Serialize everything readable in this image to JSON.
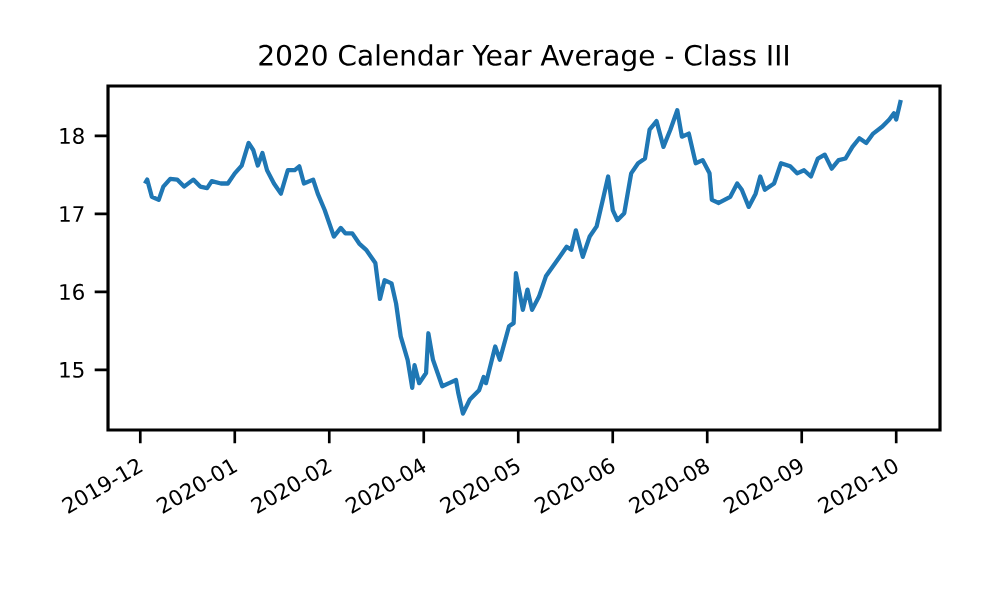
{
  "chart_data": {
    "type": "line",
    "title": "2020 Calendar Year Average - Class III",
    "x": [
      "2019-12-03",
      "2019-12-04",
      "2019-12-06",
      "2019-12-09",
      "2019-12-11",
      "2019-12-14",
      "2019-12-17",
      "2019-12-20",
      "2019-12-24",
      "2019-12-27",
      "2019-12-30",
      "2020-01-01",
      "2020-01-05",
      "2020-01-08",
      "2020-01-11",
      "2020-01-14",
      "2020-01-17",
      "2020-01-19",
      "2020-01-21",
      "2020-01-23",
      "2020-01-25",
      "2020-01-28",
      "2020-01-31",
      "2020-02-03",
      "2020-02-06",
      "2020-02-08",
      "2020-02-10",
      "2020-02-14",
      "2020-02-16",
      "2020-02-19",
      "2020-02-23",
      "2020-02-26",
      "2020-02-28",
      "2020-03-02",
      "2020-03-05",
      "2020-03-08",
      "2020-03-12",
      "2020-03-14",
      "2020-03-16",
      "2020-03-19",
      "2020-03-21",
      "2020-03-23",
      "2020-03-26",
      "2020-03-28",
      "2020-03-29",
      "2020-03-31",
      "2020-04-03",
      "2020-04-04",
      "2020-04-06",
      "2020-04-10",
      "2020-04-13",
      "2020-04-16",
      "2020-04-17",
      "2020-04-19",
      "2020-04-22",
      "2020-04-26",
      "2020-04-28",
      "2020-04-29",
      "2020-05-03",
      "2020-05-05",
      "2020-05-09",
      "2020-05-11",
      "2020-05-12",
      "2020-05-15",
      "2020-05-17",
      "2020-05-19",
      "2020-05-22",
      "2020-05-25",
      "2020-05-31",
      "2020-06-03",
      "2020-06-05",
      "2020-06-07",
      "2020-06-10",
      "2020-06-13",
      "2020-06-16",
      "2020-06-19",
      "2020-06-21",
      "2020-06-23",
      "2020-06-25",
      "2020-06-28",
      "2020-07-01",
      "2020-07-04",
      "2020-07-07",
      "2020-07-09",
      "2020-07-12",
      "2020-07-15",
      "2020-07-18",
      "2020-07-21",
      "2020-07-23",
      "2020-07-26",
      "2020-07-29",
      "2020-08-01",
      "2020-08-04",
      "2020-08-05",
      "2020-08-08",
      "2020-08-13",
      "2020-08-16",
      "2020-08-18",
      "2020-08-21",
      "2020-08-24",
      "2020-08-26",
      "2020-08-28",
      "2020-09-01",
      "2020-09-04",
      "2020-09-08",
      "2020-09-11",
      "2020-09-14",
      "2020-09-17",
      "2020-09-20",
      "2020-09-23",
      "2020-09-26",
      "2020-09-29",
      "2020-10-02",
      "2020-10-05",
      "2020-10-08",
      "2020-10-11",
      "2020-10-14",
      "2020-10-18",
      "2020-10-21",
      "2020-10-23",
      "2020-10-24",
      "2020-10-26"
    ],
    "values": [
      17.39,
      17.44,
      17.22,
      17.18,
      17.35,
      17.45,
      17.44,
      17.35,
      17.44,
      17.35,
      17.33,
      17.42,
      17.39,
      17.39,
      17.52,
      17.62,
      17.91,
      17.82,
      17.62,
      17.78,
      17.56,
      17.39,
      17.26,
      17.56,
      17.56,
      17.61,
      17.39,
      17.44,
      17.26,
      17.05,
      16.71,
      16.82,
      16.75,
      16.75,
      16.62,
      16.54,
      16.37,
      15.91,
      16.15,
      16.11,
      15.85,
      15.43,
      15.13,
      14.77,
      15.06,
      14.83,
      14.96,
      15.47,
      15.13,
      14.79,
      14.83,
      14.87,
      14.7,
      14.44,
      14.62,
      14.74,
      14.91,
      14.83,
      15.3,
      15.13,
      15.56,
      15.6,
      16.24,
      15.77,
      16.03,
      15.77,
      15.94,
      16.2,
      16.45,
      16.58,
      16.54,
      16.79,
      16.45,
      16.71,
      16.84,
      17.22,
      17.48,
      17.05,
      16.92,
      17.01,
      17.52,
      17.65,
      17.71,
      18.08,
      18.19,
      17.86,
      18.08,
      18.33,
      17.99,
      18.03,
      17.65,
      17.69,
      17.52,
      17.18,
      17.14,
      17.22,
      17.39,
      17.31,
      17.09,
      17.26,
      17.48,
      17.31,
      17.39,
      17.65,
      17.61,
      17.52,
      17.56,
      17.48,
      17.71,
      17.76,
      17.58,
      17.69,
      17.71,
      17.86,
      17.97,
      17.91,
      18.03,
      18.12,
      18.21,
      18.29,
      18.21,
      18.46
    ],
    "color": "#1f77b4",
    "xlim": [
      "2019-11-17",
      "2020-11-12"
    ],
    "ylim": [
      14.23,
      18.64
    ],
    "xticks": [
      {
        "value": "2019-12-01",
        "label": "2019-12"
      },
      {
        "value": "2020-01-11",
        "label": "2020-01"
      },
      {
        "value": "2020-02-21",
        "label": "2020-02"
      },
      {
        "value": "2020-04-02",
        "label": "2020-04"
      },
      {
        "value": "2020-05-13",
        "label": "2020-05"
      },
      {
        "value": "2020-06-23",
        "label": "2020-06"
      },
      {
        "value": "2020-08-03",
        "label": "2020-08"
      },
      {
        "value": "2020-09-13",
        "label": "2020-09"
      },
      {
        "value": "2020-10-24",
        "label": "2020-10"
      }
    ],
    "yticks": [
      15,
      16,
      17,
      18
    ]
  }
}
